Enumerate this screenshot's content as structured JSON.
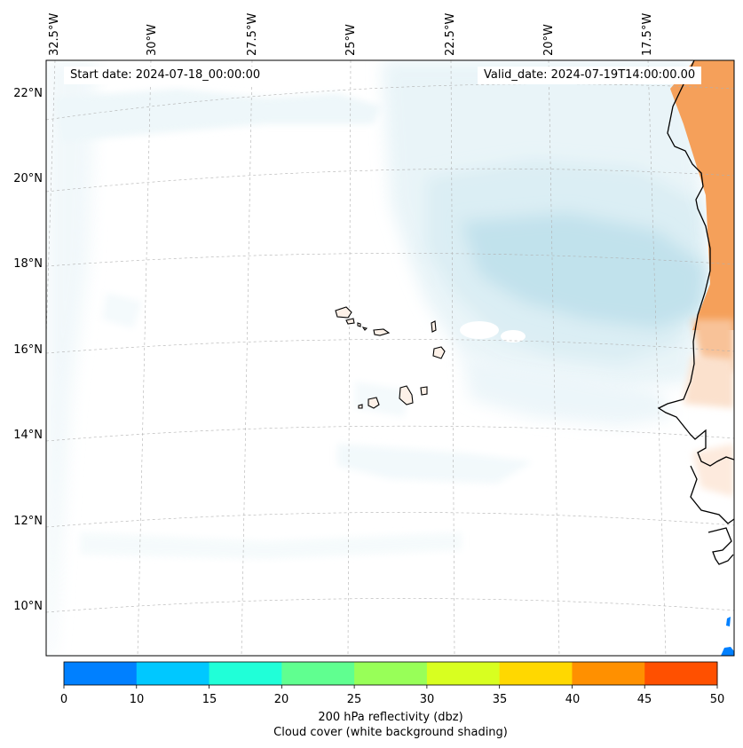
{
  "map": {
    "start_date": "Start date: 2024-07-18_00:00:00",
    "valid_date": "Valid_date: 2024-07-19T14:00:00.00",
    "lon_labels": [
      "32.5°W",
      "30°W",
      "27.5°W",
      "25°W",
      "22.5°W",
      "20°W",
      "17.5°W"
    ],
    "lat_labels": [
      "22°N",
      "20°N",
      "18°N",
      "16°N",
      "14°N",
      "12°N",
      "10°N"
    ],
    "colors": {
      "cloud": "#add8e6",
      "land_heat": "#f5a05a",
      "coastline": "#000000",
      "grid": "#b0b0b0"
    }
  },
  "colorbar": {
    "ticks": [
      "0",
      "10",
      "15",
      "20",
      "25",
      "30",
      "35",
      "40",
      "45",
      "50"
    ],
    "colors": [
      "#0080ff",
      "#00c8ff",
      "#20ffd8",
      "#60ff90",
      "#98ff58",
      "#d8ff20",
      "#ffd800",
      "#ff9000",
      "#ff5000"
    ],
    "label_line1": "200 hPa reflectivity (dbz)",
    "label_line2": "Cloud cover (white background shading)"
  }
}
